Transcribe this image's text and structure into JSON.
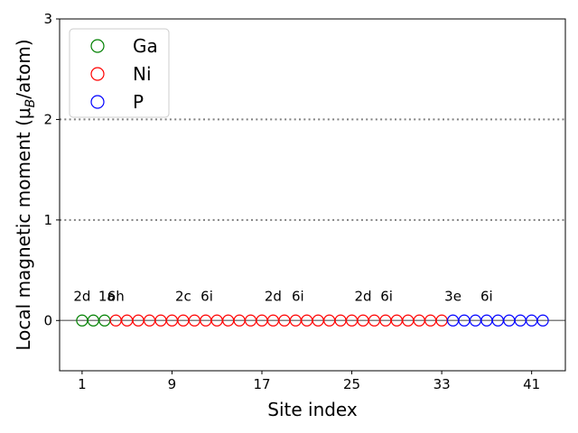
{
  "chart_data": {
    "type": "scatter",
    "title": "",
    "xlabel": "Site index",
    "ylabel": "Local magnetic moment (μ_B/atom)",
    "xlim": [
      -1,
      44
    ],
    "ylim": [
      -0.5,
      3
    ],
    "xticks": [
      1,
      9,
      17,
      25,
      33,
      41
    ],
    "yticks": [
      0,
      1,
      2,
      3
    ],
    "grid": false,
    "reference_lines": [
      {
        "y": 1,
        "style": "dotted"
      },
      {
        "y": 2,
        "style": "dotted"
      },
      {
        "y": 0,
        "style": "solid"
      }
    ],
    "legend_position": "top-left",
    "marker": "open-circle",
    "series": [
      {
        "name": "Ga",
        "color": "#008000",
        "x": [
          1,
          2,
          3
        ],
        "values": [
          0,
          0,
          0
        ]
      },
      {
        "name": "Ni",
        "color": "#ff0000",
        "x": [
          4,
          5,
          6,
          7,
          8,
          9,
          10,
          11,
          12,
          13,
          14,
          15,
          16,
          17,
          18,
          19,
          20,
          21,
          22,
          23,
          24,
          25,
          26,
          27,
          28,
          29,
          30,
          31,
          32,
          33
        ],
        "values": [
          0,
          0,
          0,
          0,
          0,
          0,
          0,
          0,
          0,
          0,
          0,
          0,
          0,
          0,
          0,
          0,
          0,
          0,
          0,
          0,
          0,
          0,
          0,
          0,
          0,
          0,
          0,
          0,
          0,
          0
        ]
      },
      {
        "name": "P",
        "color": "#0000ff",
        "x": [
          34,
          35,
          36,
          37,
          38,
          39,
          40,
          41,
          42
        ],
        "values": [
          0,
          0,
          0,
          0,
          0,
          0,
          0,
          0,
          0
        ]
      }
    ],
    "annotations": [
      {
        "text": "2d",
        "x": 1,
        "y": 0.25
      },
      {
        "text": "1a",
        "x": 3.2,
        "y": 0.25
      },
      {
        "text": "6h",
        "x": 4,
        "y": 0.25
      },
      {
        "text": "2c",
        "x": 10,
        "y": 0.25
      },
      {
        "text": "6i",
        "x": 12.1,
        "y": 0.25
      },
      {
        "text": "2d",
        "x": 18,
        "y": 0.25
      },
      {
        "text": "6i",
        "x": 20.2,
        "y": 0.25
      },
      {
        "text": "2d",
        "x": 26,
        "y": 0.25
      },
      {
        "text": "6i",
        "x": 28.1,
        "y": 0.25
      },
      {
        "text": "3e",
        "x": 34,
        "y": 0.25
      },
      {
        "text": "6i",
        "x": 37,
        "y": 0.25
      }
    ]
  }
}
